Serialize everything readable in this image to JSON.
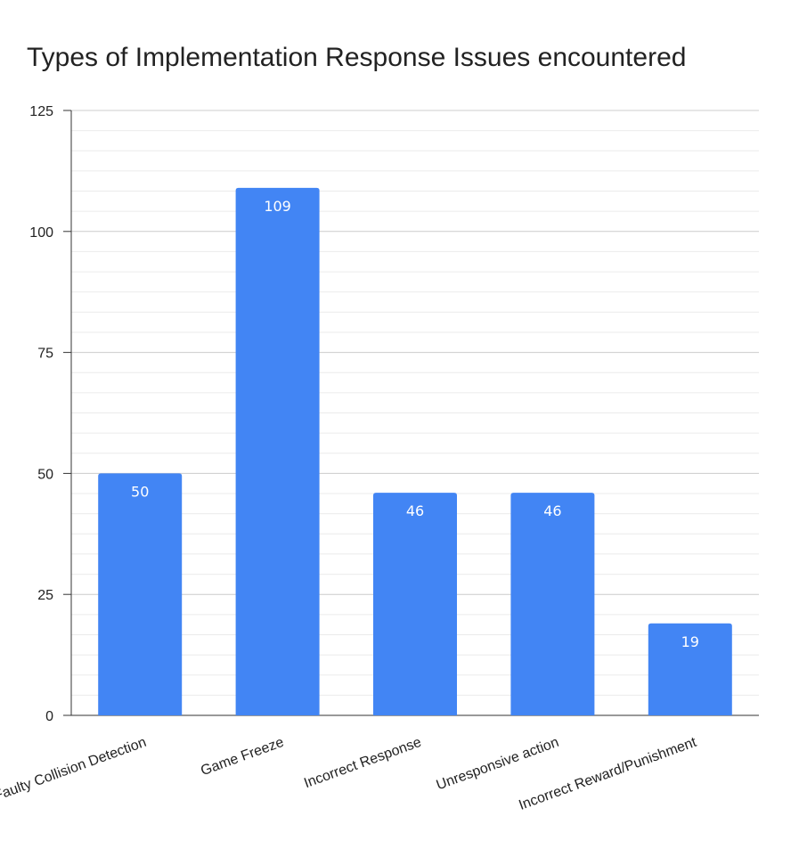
{
  "chart_data": {
    "type": "bar",
    "title": "Types of Implementation Response Issues encountered",
    "xlabel": "",
    "ylabel": "",
    "categories": [
      "Faulty Collision Detection",
      "Game Freeze",
      "Incorrect Response",
      "Unresponsive action",
      "Incorrect Reward/Punishment"
    ],
    "values": [
      50,
      109,
      46,
      46,
      19
    ],
    "ylim": [
      0,
      125
    ],
    "yticks": [
      0,
      25,
      50,
      75,
      100,
      125
    ],
    "minor_gridlines_per_major": 6,
    "grid": true,
    "legend": "none",
    "data_labels": true,
    "bar_color": "#4285f4"
  }
}
